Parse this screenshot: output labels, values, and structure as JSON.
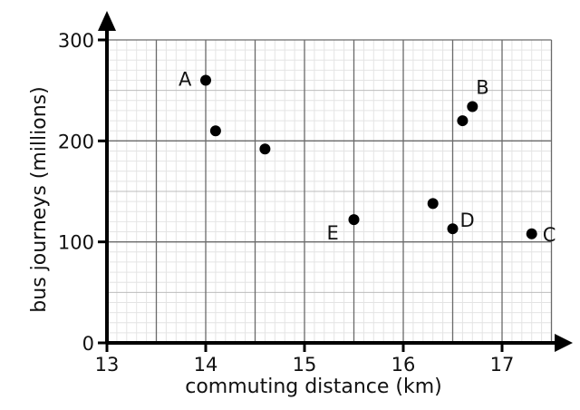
{
  "chart_data": {
    "type": "scatter",
    "title": "",
    "xlabel": "commuting distance (km)",
    "ylabel": "bus journeys (millions)",
    "xlim": [
      13,
      17.5
    ],
    "ylim": [
      0,
      300
    ],
    "x_ticks": [
      "13",
      "14",
      "15",
      "16",
      "17"
    ],
    "y_ticks": [
      "0",
      "100",
      "200",
      "300"
    ],
    "grid": true,
    "points": [
      {
        "label": "A",
        "x": 14.0,
        "y": 260
      },
      {
        "label": "",
        "x": 14.1,
        "y": 210
      },
      {
        "label": "",
        "x": 14.6,
        "y": 192
      },
      {
        "label": "E",
        "x": 15.5,
        "y": 122
      },
      {
        "label": "",
        "x": 16.3,
        "y": 138
      },
      {
        "label": "D",
        "x": 16.5,
        "y": 113
      },
      {
        "label": "",
        "x": 16.6,
        "y": 220
      },
      {
        "label": "B",
        "x": 16.7,
        "y": 234
      },
      {
        "label": "C",
        "x": 17.3,
        "y": 108
      }
    ]
  }
}
